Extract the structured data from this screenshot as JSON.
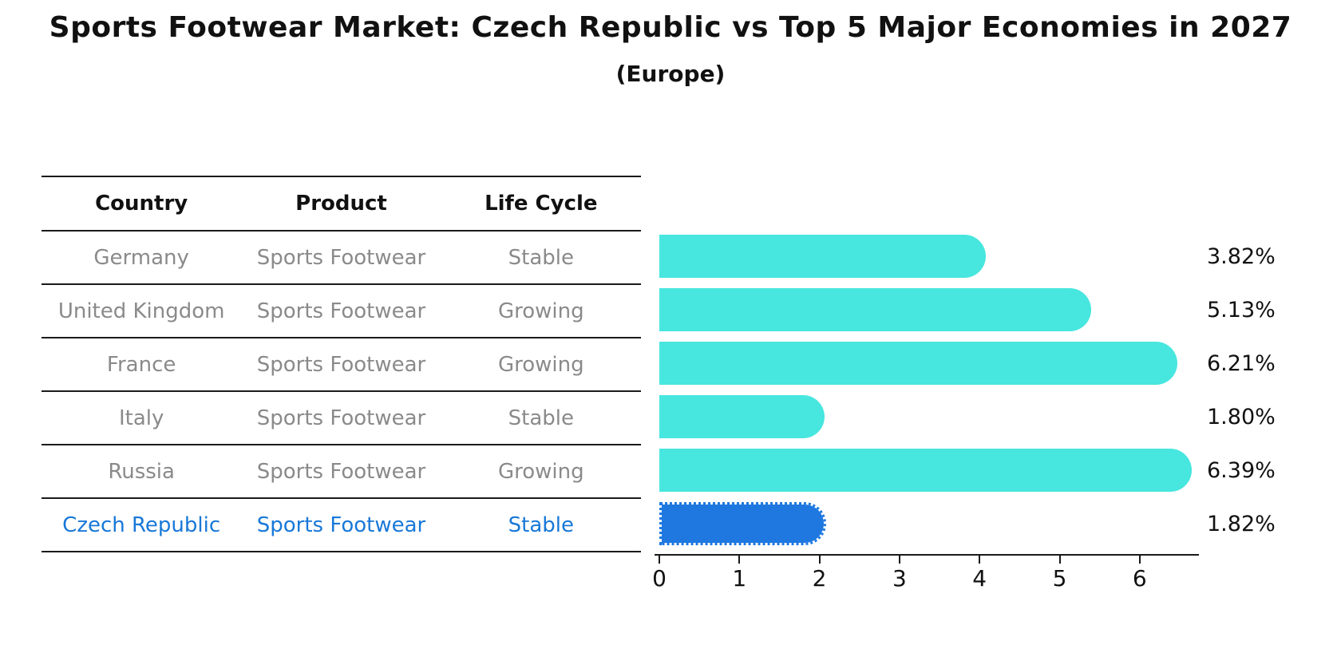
{
  "header": {
    "title": "Sports Footwear Market: Czech Republic vs Top 5 Major Economies in 2027",
    "subtitle": "(Europe)"
  },
  "table": {
    "headers": [
      "Country",
      "Product",
      "Life Cycle"
    ],
    "rows": [
      {
        "country": "Germany",
        "product": "Sports Footwear",
        "life_cycle": "Stable",
        "highlighted": false
      },
      {
        "country": "United Kingdom",
        "product": "Sports Footwear",
        "life_cycle": "Growing",
        "highlighted": false
      },
      {
        "country": "France",
        "product": "Sports Footwear",
        "life_cycle": "Growing",
        "highlighted": false
      },
      {
        "country": "Italy",
        "product": "Sports Footwear",
        "life_cycle": "Stable",
        "highlighted": false
      },
      {
        "country": "Russia",
        "product": "Sports Footwear",
        "life_cycle": "Growing",
        "highlighted": false
      },
      {
        "country": "Czech Republic",
        "product": "Sports Footwear",
        "life_cycle": "Stable",
        "highlighted": true
      }
    ]
  },
  "chart_data": {
    "type": "bar",
    "orientation": "horizontal",
    "title": "Sports Footwear Market: Czech Republic vs Top 5 Major Economies in 2027",
    "subtitle": "(Europe)",
    "categories": [
      "Germany",
      "United Kingdom",
      "France",
      "Italy",
      "Russia",
      "Czech Republic"
    ],
    "values": [
      3.82,
      5.13,
      6.21,
      1.8,
      6.39,
      1.82
    ],
    "value_labels": [
      "3.82%",
      "5.13%",
      "6.21%",
      "1.80%",
      "6.39%",
      "1.82%"
    ],
    "x_ticks": [
      "0",
      "1",
      "2",
      "3",
      "4",
      "5",
      "6"
    ],
    "xlim": [
      0,
      6.74
    ],
    "grid": false,
    "legend": "none",
    "highlight_index": 5,
    "bar_color": "#47E6DF",
    "highlight_color": "#1E78E0"
  },
  "colors": {
    "bar": "#47E6DF",
    "highlight_bar": "#1E78E0",
    "highlight_text": "#1878D8",
    "text_primary": "#111111",
    "text_muted": "#8A8A8A",
    "line": "#1A1A1A"
  }
}
